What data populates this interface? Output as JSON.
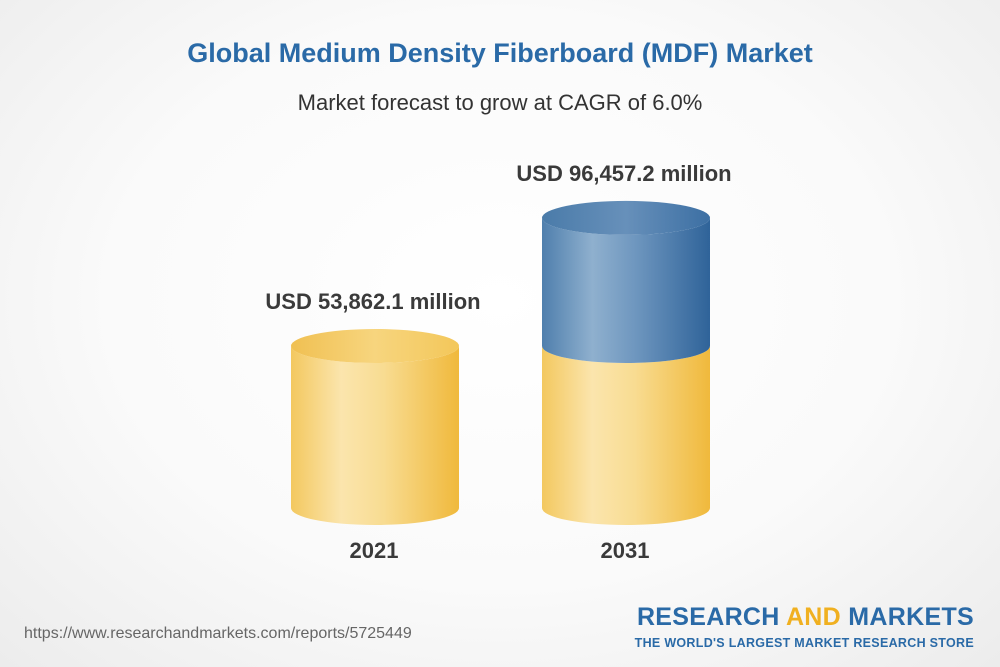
{
  "chart_data": {
    "type": "bar",
    "title": "Global Medium Density Fiberboard (MDF) Market",
    "subtitle": "Market forecast to grow at CAGR of 6.0%",
    "categories": [
      "2021",
      "2031"
    ],
    "values": [
      53862.1,
      96457.2
    ],
    "value_labels": [
      "USD 53,862.1 million",
      "USD 96,457.2 million"
    ],
    "units": "USD million",
    "ylim": [
      0,
      100000
    ],
    "xlabel": "",
    "ylabel": "",
    "grid": false,
    "legend": "none"
  },
  "footer": {
    "url": "https://www.researchandmarkets.com/reports/5725449",
    "brand_part1": "RESEARCH ",
    "brand_part2": "AND",
    "brand_part3": " MARKETS",
    "brand_tagline": "THE WORLD'S LARGEST MARKET RESEARCH STORE"
  },
  "colors": {
    "title": "#2a6aa7",
    "bar_base": "#f2c65a",
    "bar_growth": "#3b72a8"
  }
}
